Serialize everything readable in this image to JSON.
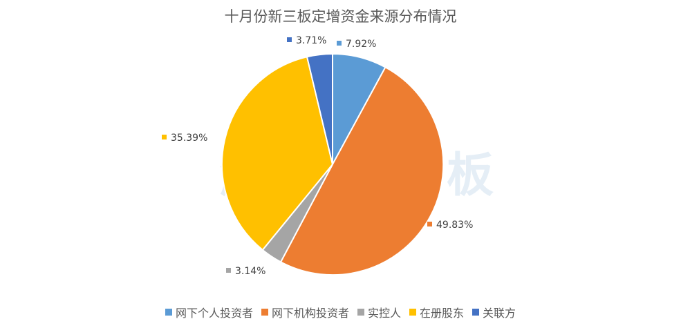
{
  "chart_data": {
    "type": "pie",
    "title": "十月份新三板定增资金来源分布情况",
    "categories": [
      "网下个人投资者",
      "网下机构投资者",
      "实控人",
      "在册股东",
      "关联方"
    ],
    "values": [
      7.92,
      49.83,
      3.14,
      35.39,
      3.71
    ],
    "value_labels": [
      "7.92%",
      "49.83%",
      "3.14%",
      "35.39%",
      "3.71%"
    ],
    "colors": [
      "#5B9BD5",
      "#ED7D31",
      "#A5A5A5",
      "#FFC000",
      "#4472C4"
    ],
    "start_angle_deg": 0,
    "direction": "clockwise",
    "legend_position": "bottom"
  },
  "watermark": {
    "text": "解读新三板"
  }
}
